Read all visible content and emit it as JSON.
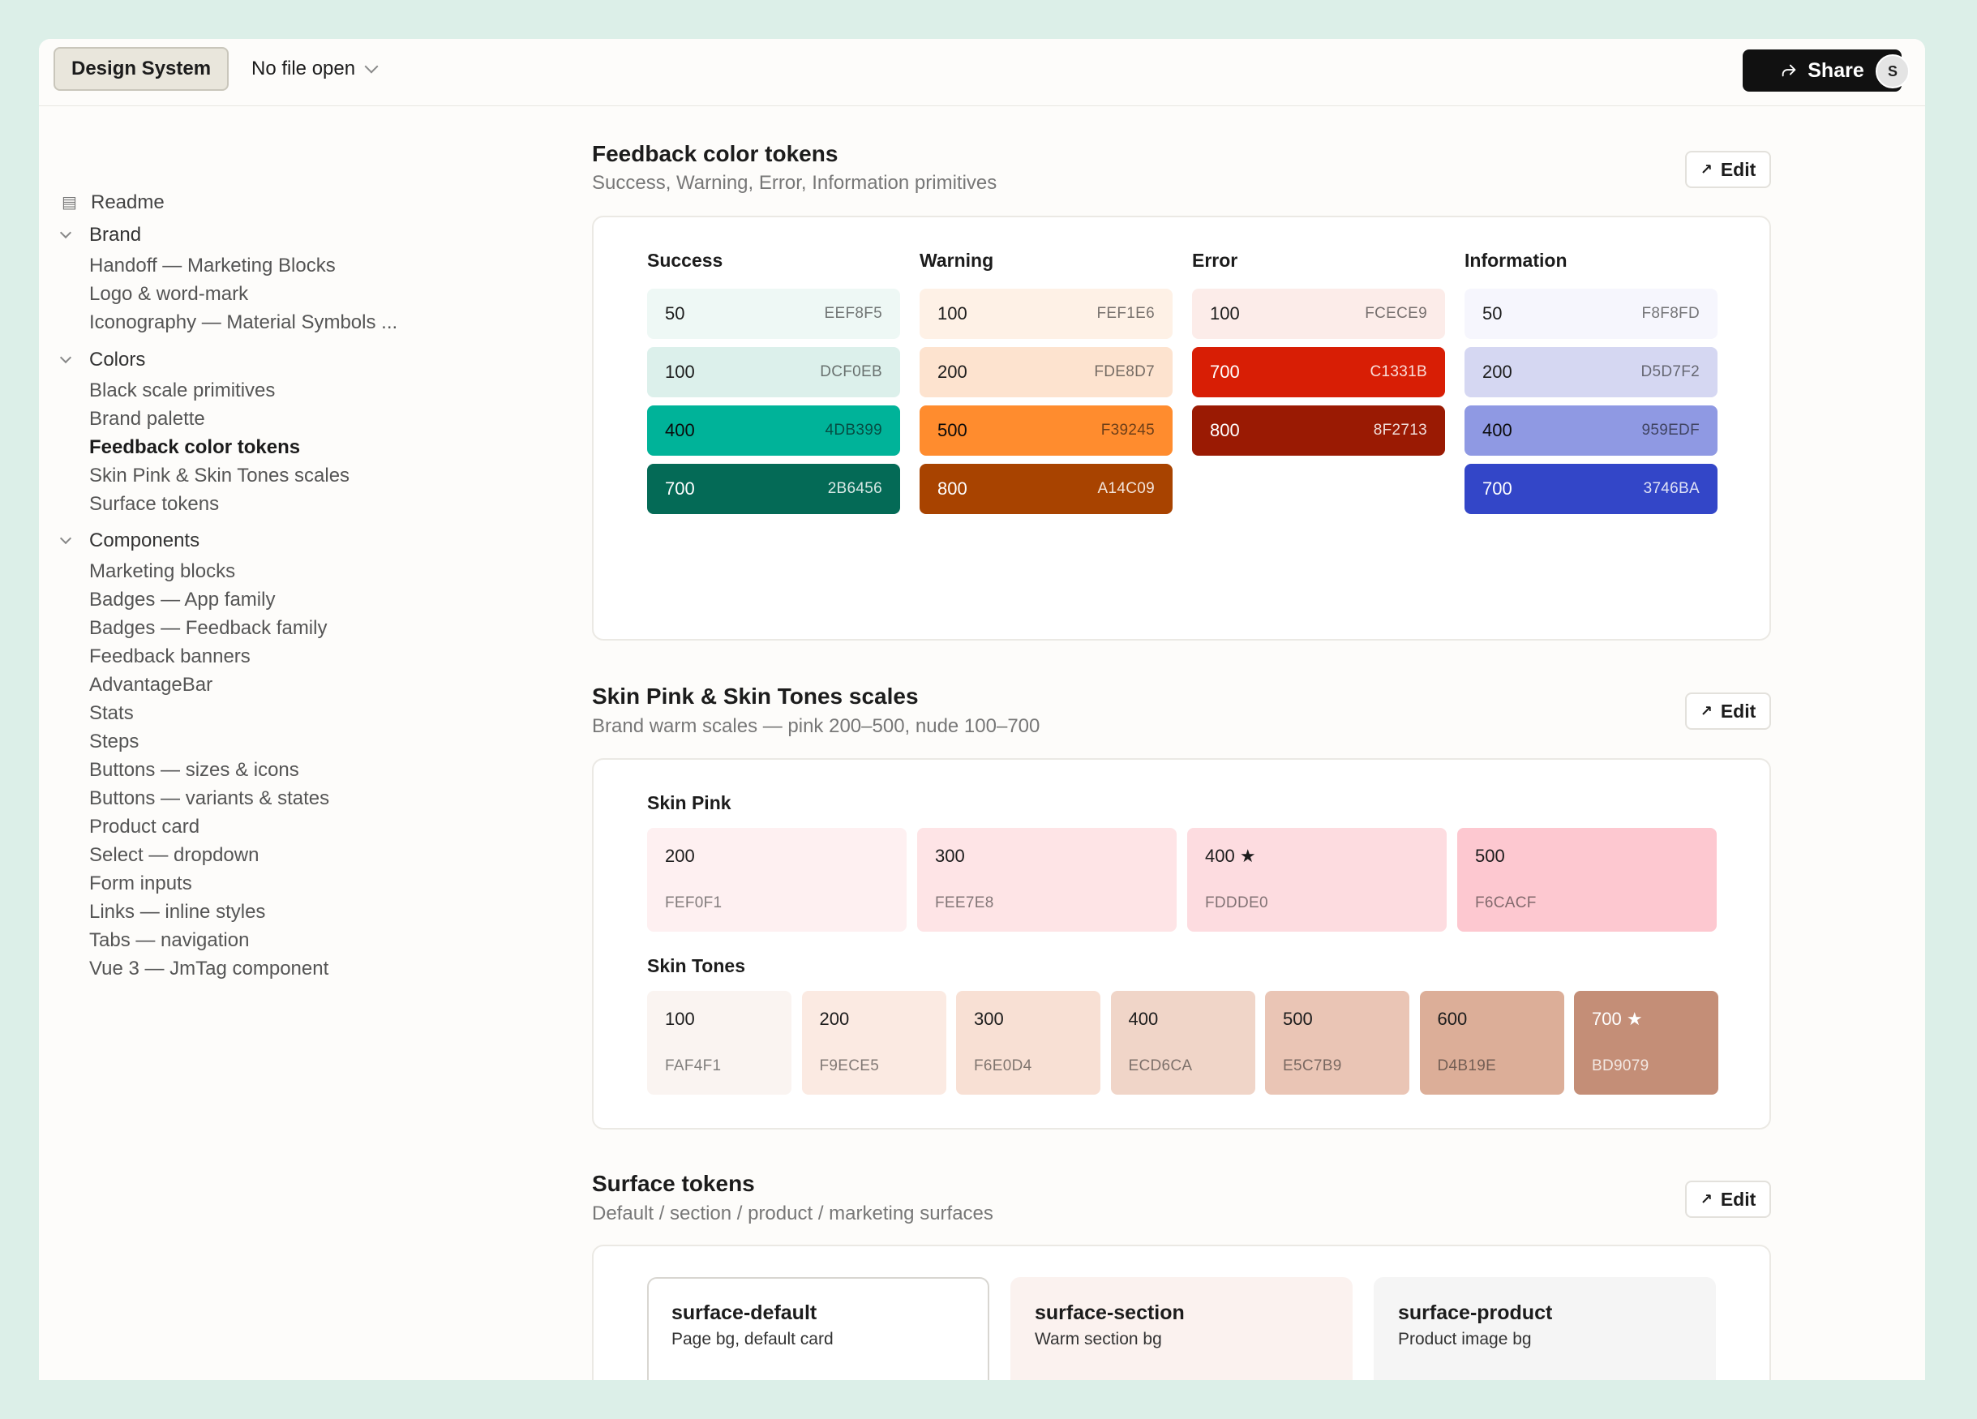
{
  "header": {
    "app_button": "Design System",
    "file_select": "No file open",
    "share_label": "Share",
    "avatar_initial": "S"
  },
  "sidebar": {
    "readme": "Readme",
    "groups": [
      {
        "label": "Brand",
        "items": [
          "Handoff — Marketing Blocks",
          "Logo & word-mark",
          "Iconography — Material Symbols ..."
        ]
      },
      {
        "label": "Colors",
        "items": [
          "Black scale primitives",
          "Brand palette",
          "Feedback color tokens",
          "Skin Pink & Skin Tones scales",
          "Surface tokens"
        ]
      },
      {
        "label": "Components",
        "items": [
          "Marketing blocks",
          "Badges — App family",
          "Badges — Feedback family",
          "Feedback banners",
          "AdvantageBar",
          "Stats",
          "Steps",
          "Buttons — sizes & icons",
          "Buttons — variants & states",
          "Product card",
          "Select — dropdown",
          "Form inputs",
          "Links — inline styles",
          "Tabs — navigation",
          "Vue 3 — JmTag component"
        ]
      }
    ],
    "active_item": "Feedback color tokens"
  },
  "sections": {
    "feedback": {
      "title": "Feedback color tokens",
      "subtitle": "Success, Warning, Error, Information primitives",
      "edit_label": "Edit",
      "columns": [
        {
          "name": "Success",
          "chips": [
            {
              "step": "50",
              "hex": "EEF8F5",
              "bg": "#EEF8F5",
              "fg": "#1c1c1c"
            },
            {
              "step": "100",
              "hex": "DCF0EB",
              "bg": "#DCF0EB",
              "fg": "#1c1c1c"
            },
            {
              "step": "400",
              "hex": "4DB399",
              "bg": "#00B399",
              "fg": "#0b0b0b"
            },
            {
              "step": "700",
              "hex": "2B6456",
              "bg": "#046A56",
              "fg": "#ffffff"
            }
          ]
        },
        {
          "name": "Warning",
          "chips": [
            {
              "step": "100",
              "hex": "FEF1E6",
              "bg": "#FEF1E6",
              "fg": "#1c1c1c"
            },
            {
              "step": "200",
              "hex": "FDE8D7",
              "bg": "#FDE3CF",
              "fg": "#1c1c1c"
            },
            {
              "step": "500",
              "hex": "F39245",
              "bg": "#FF8C2E",
              "fg": "#0b0b0b"
            },
            {
              "step": "800",
              "hex": "A14C09",
              "bg": "#A84300",
              "fg": "#ffffff"
            }
          ]
        },
        {
          "name": "Error",
          "chips": [
            {
              "step": "100",
              "hex": "FCECE9",
              "bg": "#FCECE9",
              "fg": "#1c1c1c"
            },
            {
              "step": "700",
              "hex": "C1331B",
              "bg": "#D81E05",
              "fg": "#ffffff"
            },
            {
              "step": "800",
              "hex": "8F2713",
              "bg": "#9A1A03",
              "fg": "#ffffff"
            }
          ]
        },
        {
          "name": "Information",
          "chips": [
            {
              "step": "50",
              "hex": "F8F8FD",
              "bg": "#F6F6FD",
              "fg": "#1c1c1c"
            },
            {
              "step": "200",
              "hex": "D5D7F2",
              "bg": "#D5D7F2",
              "fg": "#1c1c1c"
            },
            {
              "step": "400",
              "hex": "959EDF",
              "bg": "#8F99E3",
              "fg": "#0b0b0b"
            },
            {
              "step": "700",
              "hex": "3746BA",
              "bg": "#3346C8",
              "fg": "#ffffff"
            }
          ]
        }
      ]
    },
    "skin": {
      "title": "Skin Pink & Skin Tones scales",
      "subtitle": "Brand warm scales — pink 200–500, nude 100–700",
      "edit_label": "Edit",
      "pink_label": "Skin Pink",
      "pink": [
        {
          "step": "200",
          "hex": "FEF0F1",
          "bg": "#FEF0F1",
          "fg": "#1c1c1c",
          "star": false
        },
        {
          "step": "300",
          "hex": "FEE7E8",
          "bg": "#FEE4E6",
          "fg": "#1c1c1c",
          "star": false
        },
        {
          "step": "400",
          "hex": "FDDDE0",
          "bg": "#FDDCE0",
          "fg": "#1c1c1c",
          "star": true
        },
        {
          "step": "500",
          "hex": "F6CACF",
          "bg": "#FDC8D0",
          "fg": "#1c1c1c",
          "star": false
        }
      ],
      "tones_label": "Skin Tones",
      "tones": [
        {
          "step": "100",
          "hex": "FAF4F1",
          "bg": "#FAF4F1",
          "fg": "#1c1c1c",
          "star": false
        },
        {
          "step": "200",
          "hex": "F9ECE5",
          "bg": "#FBEAE2",
          "fg": "#1c1c1c",
          "star": false
        },
        {
          "step": "300",
          "hex": "F6E0D4",
          "bg": "#F8E0D4",
          "fg": "#1c1c1c",
          "star": false
        },
        {
          "step": "400",
          "hex": "ECD6CA",
          "bg": "#F0D5C8",
          "fg": "#1c1c1c",
          "star": false
        },
        {
          "step": "500",
          "hex": "E5C7B9",
          "bg": "#EAC5B5",
          "fg": "#1c1c1c",
          "star": false
        },
        {
          "step": "600",
          "hex": "D4B19E",
          "bg": "#DCAE98",
          "fg": "#1c1c1c",
          "star": false
        },
        {
          "step": "700",
          "hex": "BD9079",
          "bg": "#C48E77",
          "fg": "#ffffff",
          "star": true
        }
      ]
    },
    "surface": {
      "title": "Surface tokens",
      "subtitle": "Default / section / product / marketing surfaces",
      "edit_label": "Edit",
      "tiles": [
        {
          "name": "surface-default",
          "desc": "Page bg, default card",
          "bg": "#ffffff",
          "border": "#d8d6d1"
        },
        {
          "name": "surface-section",
          "desc": "Warm section bg",
          "bg": "#FBF2EF",
          "border": "#FBF2EF"
        },
        {
          "name": "surface-product",
          "desc": "Product image bg",
          "bg": "#F5F5F5",
          "border": "#F5F5F5"
        }
      ]
    }
  }
}
